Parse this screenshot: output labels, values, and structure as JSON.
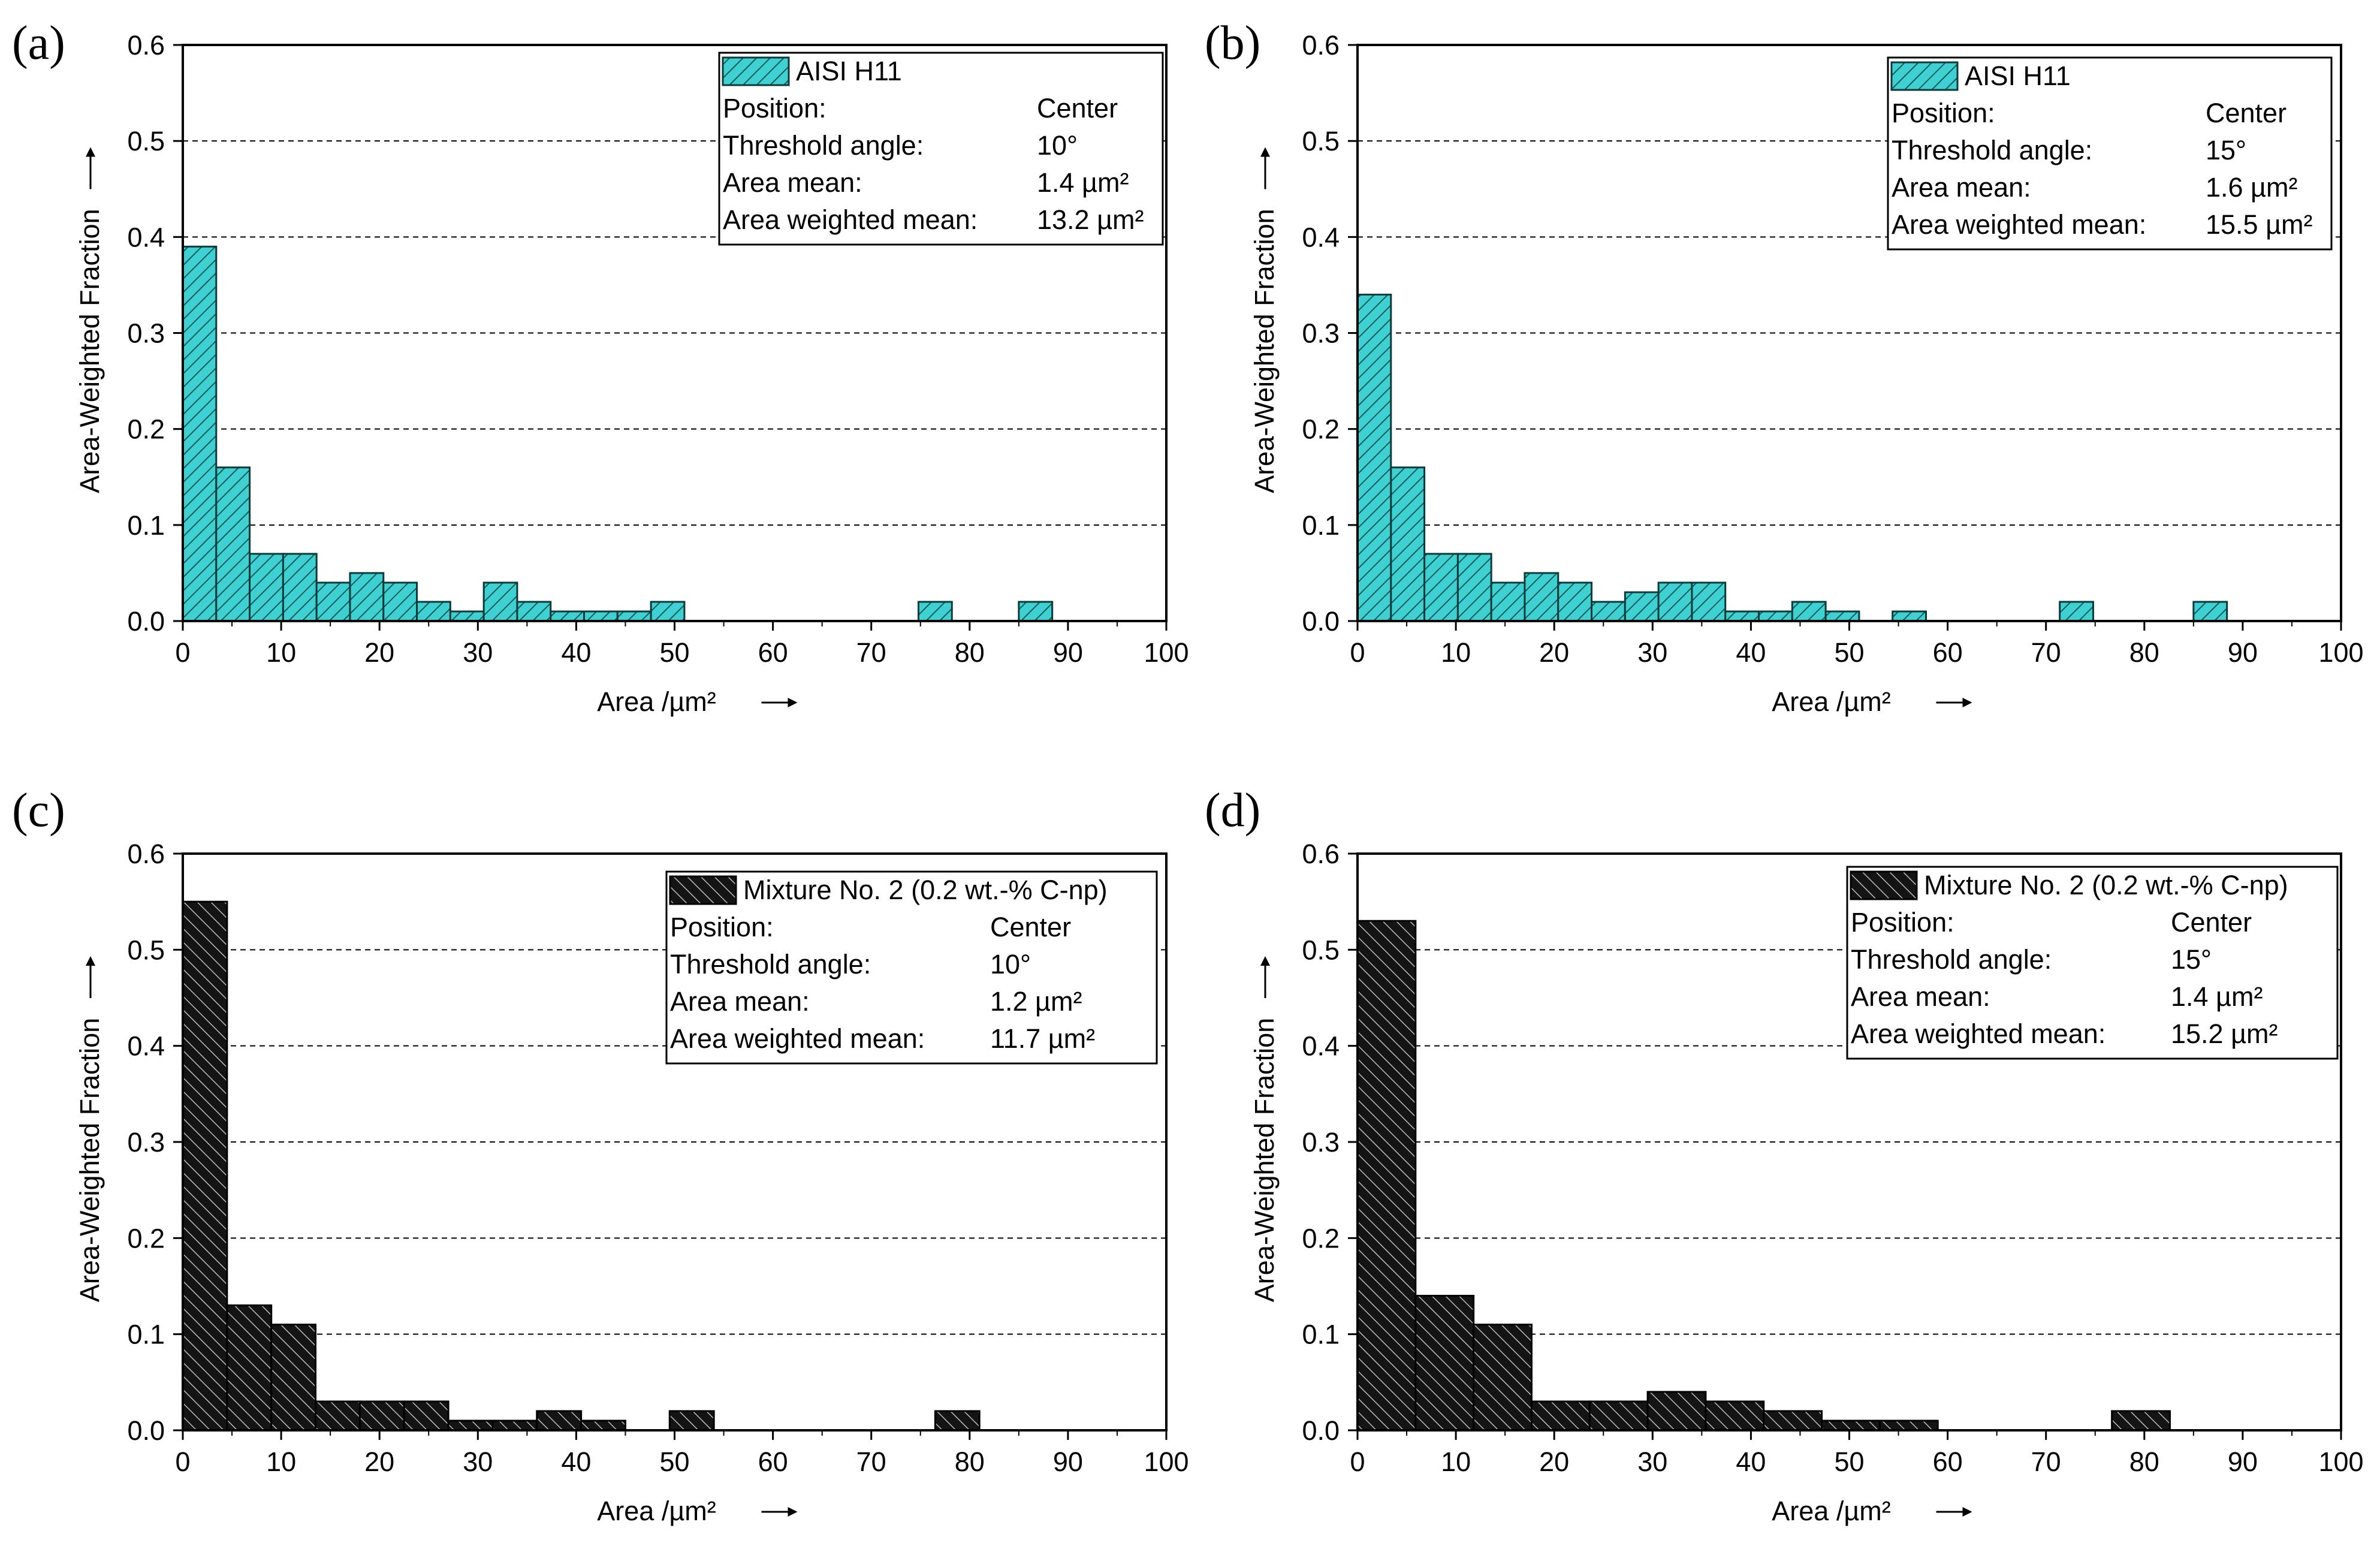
{
  "colors": {
    "teal": "#3fd1d1",
    "black": "#1a1a1a"
  },
  "chart_data": [
    {
      "panel": "(a)",
      "type": "bar",
      "xlabel": "Area /µm²",
      "ylabel": "Area-Weighted Fraction",
      "xlim": [
        0,
        100
      ],
      "ylim": [
        0,
        0.6
      ],
      "xticks": [
        0,
        10,
        20,
        30,
        40,
        50,
        60,
        70,
        80,
        90,
        100
      ],
      "yticks": [
        0.0,
        0.1,
        0.2,
        0.3,
        0.4,
        0.5,
        0.6
      ],
      "grid": "horizontal-dashed",
      "bin_width": 3.4,
      "x": [
        1.7,
        5.1,
        8.5,
        11.9,
        15.3,
        18.7,
        22.1,
        25.5,
        28.9,
        32.3,
        35.7,
        39.1,
        42.5,
        45.9,
        49.3,
        76.5,
        86.7
      ],
      "values": [
        0.39,
        0.16,
        0.07,
        0.07,
        0.04,
        0.05,
        0.04,
        0.02,
        0.01,
        0.04,
        0.02,
        0.01,
        0.01,
        0.01,
        0.02,
        0.02,
        0.02
      ],
      "series_color": "teal",
      "legend": {
        "placement": "top-right",
        "series": "AISI H11",
        "rows": [
          [
            "Position:",
            "Center"
          ],
          [
            "Threshold angle:",
            "10°"
          ],
          [
            "Area mean:",
            "1.4 µm²"
          ],
          [
            "Area weighted mean:",
            "13.2 µm²"
          ]
        ]
      }
    },
    {
      "panel": "(b)",
      "type": "bar",
      "xlabel": "Area /µm²",
      "ylabel": "Area-Weighted Fraction",
      "xlim": [
        0,
        100
      ],
      "ylim": [
        0,
        0.6
      ],
      "xticks": [
        0,
        10,
        20,
        30,
        40,
        50,
        60,
        70,
        80,
        90,
        100
      ],
      "yticks": [
        0.0,
        0.1,
        0.2,
        0.3,
        0.4,
        0.5,
        0.6
      ],
      "grid": "horizontal-dashed",
      "bin_width": 3.4,
      "x": [
        1.7,
        5.1,
        8.5,
        11.9,
        15.3,
        18.7,
        22.1,
        25.5,
        28.9,
        32.3,
        35.7,
        39.1,
        42.5,
        45.9,
        49.3,
        56.1,
        73.1,
        86.7
      ],
      "values": [
        0.34,
        0.16,
        0.07,
        0.07,
        0.04,
        0.05,
        0.04,
        0.02,
        0.03,
        0.04,
        0.04,
        0.01,
        0.01,
        0.02,
        0.01,
        0.01,
        0.02,
        0.02
      ],
      "series_color": "teal",
      "legend": {
        "placement": "top-right",
        "series": "AISI H11",
        "rows": [
          [
            "Position:",
            "Center"
          ],
          [
            "Threshold angle:",
            "15°"
          ],
          [
            "Area mean:",
            "1.6 µm²"
          ],
          [
            "Area weighted mean:",
            "15.5 µm²"
          ]
        ]
      }
    },
    {
      "panel": "(c)",
      "type": "bar",
      "xlabel": "Area /µm²",
      "ylabel": "Area-Weighted Fraction",
      "xlim": [
        0,
        100
      ],
      "ylim": [
        0,
        0.6
      ],
      "xticks": [
        0,
        10,
        20,
        30,
        40,
        50,
        60,
        70,
        80,
        90,
        100
      ],
      "yticks": [
        0.0,
        0.1,
        0.2,
        0.3,
        0.4,
        0.5,
        0.6
      ],
      "grid": "horizontal-dashed",
      "bin_width": 4.5,
      "x": [
        2.25,
        6.75,
        11.25,
        15.75,
        20.25,
        24.75,
        29.25,
        33.75,
        38.25,
        42.75,
        51.75,
        78.75
      ],
      "values": [
        0.55,
        0.13,
        0.11,
        0.03,
        0.03,
        0.03,
        0.01,
        0.01,
        0.02,
        0.01,
        0.02,
        0.02
      ],
      "series_color": "black",
      "legend": {
        "placement": "top-right",
        "series": "Mixture No. 2 (0.2 wt.-% C-np)",
        "rows": [
          [
            "Position:",
            "Center"
          ],
          [
            "Threshold angle:",
            "10°"
          ],
          [
            "Area mean:",
            "1.2 µm²"
          ],
          [
            "Area weighted mean:",
            "11.7 µm²"
          ]
        ]
      }
    },
    {
      "panel": "(d)",
      "type": "bar",
      "xlabel": "Area /µm²",
      "ylabel": "Area-Weighted Fraction",
      "xlim": [
        0,
        100
      ],
      "ylim": [
        0,
        0.6
      ],
      "xticks": [
        0,
        10,
        20,
        30,
        40,
        50,
        60,
        70,
        80,
        90,
        100
      ],
      "yticks": [
        0.0,
        0.1,
        0.2,
        0.3,
        0.4,
        0.5,
        0.6
      ],
      "grid": "horizontal-dashed",
      "bin_width": 5.9,
      "x": [
        2.95,
        8.85,
        14.75,
        20.65,
        26.55,
        32.45,
        38.35,
        44.25,
        50.15,
        56.05,
        79.65
      ],
      "values": [
        0.53,
        0.14,
        0.11,
        0.03,
        0.03,
        0.04,
        0.03,
        0.02,
        0.01,
        0.01,
        0.02
      ],
      "series_color": "black",
      "legend": {
        "placement": "top-right",
        "series": "Mixture No. 2 (0.2 wt.-% C-np)",
        "rows": [
          [
            "Position:",
            "Center"
          ],
          [
            "Threshold angle:",
            "15°"
          ],
          [
            "Area mean:",
            "1.4 µm²"
          ],
          [
            "Area weighted mean:",
            "15.2 µm²"
          ]
        ]
      }
    }
  ]
}
